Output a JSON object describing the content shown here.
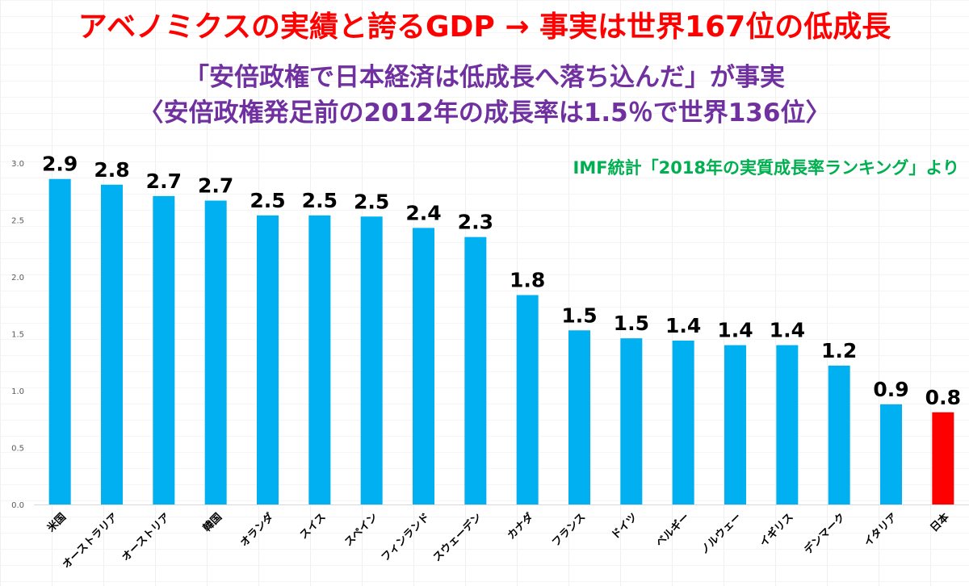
{
  "headline": "アベノミクスの実績と誇るGDP → 事実は世界167位の低成長",
  "subtitle_line1": "「安倍政権で日本経済は低成長へ落ち込んだ」が事実",
  "subtitle_line2": "〈安倍政権発足前の2012年の成長率は1.5％で世界136位〉",
  "source_note": "IMF統計「2018年の実質成長率ランキング」より",
  "colors": {
    "bar": "#00b0f0",
    "highlight": "#ff0000",
    "headline": "#ff0000",
    "subtitle": "#7030a0",
    "note": "#00b050"
  },
  "chart_data": {
    "type": "bar",
    "categories": [
      "米国",
      "オーストラリア",
      "オーストリア",
      "韓国",
      "オランダ",
      "スイス",
      "スペイン",
      "フィンランド",
      "スウェーデン",
      "カナダ",
      "フランス",
      "ドイツ",
      "ベルギー",
      "ノルウェー",
      "イギリス",
      "デンマーク",
      "イタリア",
      "日本"
    ],
    "values": [
      2.86,
      2.81,
      2.71,
      2.67,
      2.54,
      2.54,
      2.53,
      2.43,
      2.35,
      1.84,
      1.53,
      1.46,
      1.44,
      1.4,
      1.4,
      1.22,
      0.88,
      0.81
    ],
    "data_labels": [
      "2.9",
      "2.8",
      "2.7",
      "2.7",
      "2.5",
      "2.5",
      "2.5",
      "2.4",
      "2.3",
      "1.8",
      "1.5",
      "1.5",
      "1.4",
      "1.4",
      "1.4",
      "1.2",
      "0.9",
      "0.8"
    ],
    "highlight_category": "日本",
    "ylim": [
      0,
      3.0
    ],
    "yticks": [
      "0.0",
      "0.5",
      "1.0",
      "1.5",
      "2.0",
      "2.5",
      "3.0"
    ],
    "grid": false,
    "legend": "none",
    "xlabel": "",
    "ylabel": ""
  }
}
